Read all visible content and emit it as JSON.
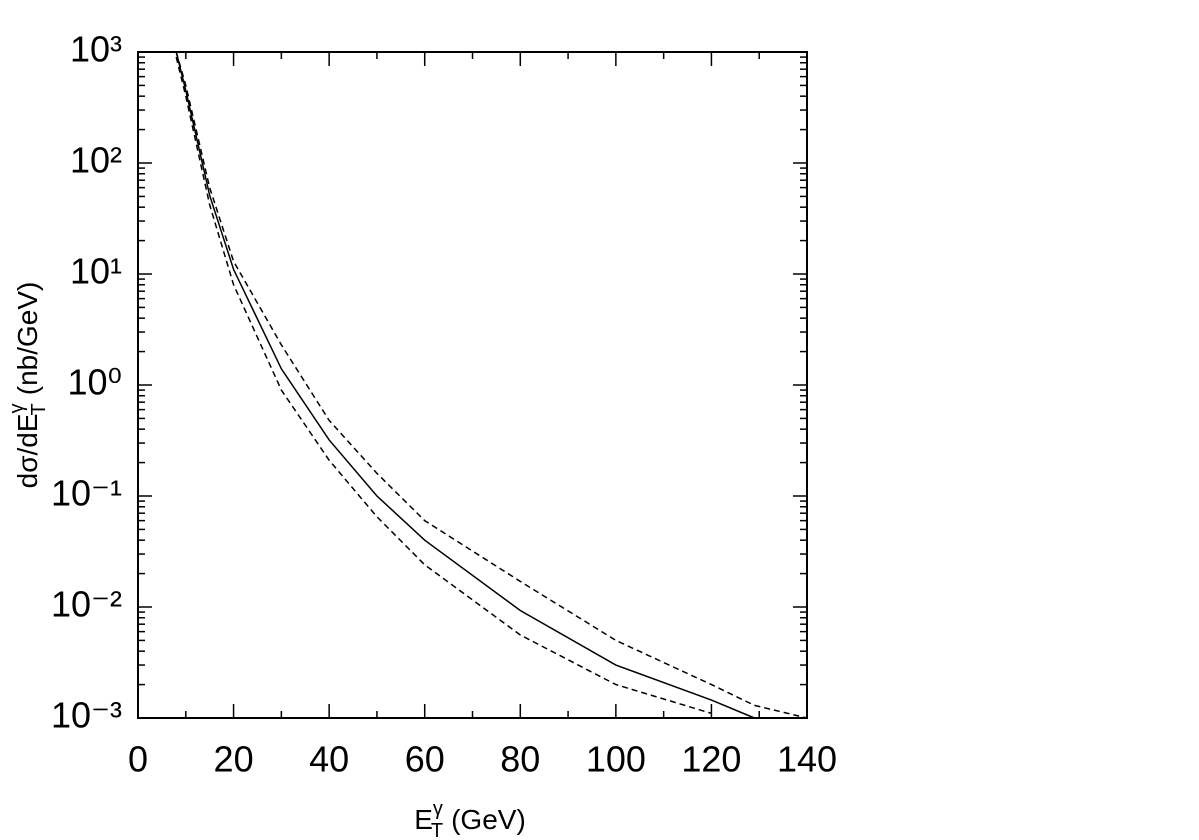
{
  "chart_data": {
    "type": "line",
    "x": [
      8,
      10,
      15,
      20,
      30,
      40,
      50,
      60,
      80,
      100,
      120,
      129,
      140
    ],
    "series": [
      {
        "color": "#000000",
        "dash": "solid",
        "values": [
          1000,
          450,
          51,
          11,
          1.4,
          0.32,
          0.1,
          0.04,
          0.0093,
          0.003,
          0.00145,
          0.001,
          null
        ]
      },
      {
        "color": "#000000",
        "dash": "dashed",
        "values": [
          1000,
          500,
          60,
          13,
          2.3,
          0.48,
          0.16,
          0.06,
          0.017,
          0.005,
          0.002,
          0.0013,
          0.001
        ]
      },
      {
        "color": "#000000",
        "dash": "dashed",
        "values": [
          900,
          400,
          42,
          8,
          0.9,
          0.21,
          0.065,
          0.024,
          0.0056,
          0.002,
          0.0011,
          null,
          null
        ]
      }
    ],
    "xlim": [
      0,
      140
    ],
    "xticks": [
      0,
      20,
      40,
      60,
      80,
      100,
      120,
      140
    ],
    "ylim": [
      0.001,
      1000
    ],
    "log_y": true,
    "yticks": [
      {
        "value": 0.001,
        "label": "10⁻³"
      },
      {
        "value": 0.01,
        "label": "10⁻²"
      },
      {
        "value": 0.1,
        "label": "10⁻¹"
      },
      {
        "value": 1,
        "label": "10⁰"
      },
      {
        "value": 10,
        "label": "10¹"
      },
      {
        "value": 100,
        "label": "10²"
      },
      {
        "value": 1000,
        "label": "10³"
      }
    ],
    "xlabel": {
      "base": "E",
      "sup": "γ",
      "sub": "T",
      "unit": "(GeV)"
    },
    "ylabel": {
      "base": "dσ/dE",
      "sup": "γ",
      "sub": "T",
      "unit": "(nb/GeV)"
    }
  }
}
